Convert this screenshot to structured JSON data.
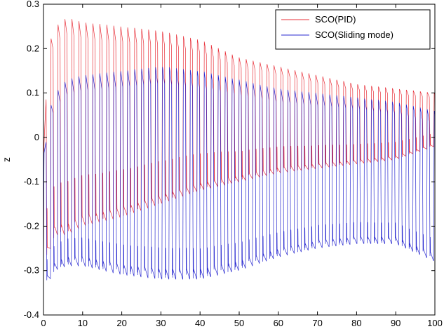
{
  "chart_data": {
    "type": "line",
    "title": "",
    "xlabel": "",
    "ylabel": "z",
    "xlim": [
      0,
      100
    ],
    "ylim": [
      -0.4,
      0.3
    ],
    "xticks": [
      0,
      10,
      20,
      30,
      40,
      50,
      60,
      70,
      80,
      90,
      100
    ],
    "yticks": [
      -0.4,
      -0.3,
      -0.2,
      -0.1,
      0,
      0.1,
      0.2,
      0.3
    ],
    "grid": false,
    "legend_position": "top-right",
    "oscillation": {
      "period": 1.78,
      "note_series_shape": "periodic oscillations with slowly varying envelope"
    },
    "series": [
      {
        "name": "SCO(PID)",
        "color": "#e8303a",
        "envelope": [
          {
            "x": 0,
            "max": -0.05,
            "min": -0.3
          },
          {
            "x": 1,
            "max": 0.2,
            "min": -0.27
          },
          {
            "x": 3,
            "max": 0.25,
            "min": -0.22
          },
          {
            "x": 6,
            "max": 0.27,
            "min": -0.22
          },
          {
            "x": 10,
            "max": 0.26,
            "min": -0.2
          },
          {
            "x": 20,
            "max": 0.25,
            "min": -0.18
          },
          {
            "x": 30,
            "max": 0.24,
            "min": -0.15
          },
          {
            "x": 40,
            "max": 0.22,
            "min": -0.12
          },
          {
            "x": 50,
            "max": 0.18,
            "min": -0.1
          },
          {
            "x": 60,
            "max": 0.16,
            "min": -0.08
          },
          {
            "x": 70,
            "max": 0.14,
            "min": -0.07
          },
          {
            "x": 80,
            "max": 0.12,
            "min": -0.06
          },
          {
            "x": 90,
            "max": 0.11,
            "min": -0.05
          },
          {
            "x": 100,
            "max": 0.1,
            "min": -0.02
          }
        ]
      },
      {
        "name": "SCO(Sliding mode)",
        "color": "#2a2ad0",
        "envelope": [
          {
            "x": 0,
            "max": -0.05,
            "min": -0.33
          },
          {
            "x": 1,
            "max": 0.05,
            "min": -0.33
          },
          {
            "x": 3,
            "max": 0.1,
            "min": -0.3
          },
          {
            "x": 6,
            "max": 0.13,
            "min": -0.29
          },
          {
            "x": 10,
            "max": 0.14,
            "min": -0.29
          },
          {
            "x": 20,
            "max": 0.15,
            "min": -0.31
          },
          {
            "x": 30,
            "max": 0.16,
            "min": -0.32
          },
          {
            "x": 40,
            "max": 0.15,
            "min": -0.32
          },
          {
            "x": 50,
            "max": 0.13,
            "min": -0.3
          },
          {
            "x": 60,
            "max": 0.11,
            "min": -0.27
          },
          {
            "x": 70,
            "max": 0.1,
            "min": -0.25
          },
          {
            "x": 80,
            "max": 0.09,
            "min": -0.24
          },
          {
            "x": 90,
            "max": 0.08,
            "min": -0.24
          },
          {
            "x": 100,
            "max": 0.06,
            "min": -0.28
          }
        ]
      }
    ]
  }
}
